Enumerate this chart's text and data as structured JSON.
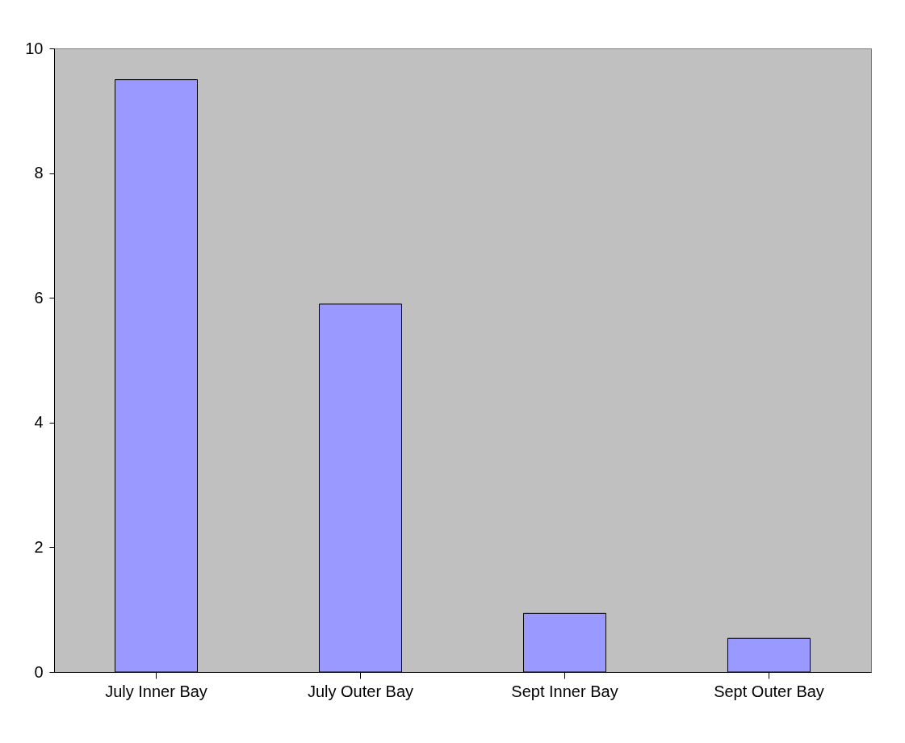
{
  "chart_data": {
    "type": "bar",
    "categories": [
      "July Inner  Bay",
      "July Outer Bay",
      "Sept Inner Bay",
      "Sept Outer Bay"
    ],
    "values": [
      9.5,
      5.9,
      0.94,
      0.54
    ],
    "color": "#9999ff",
    "ylim": [
      0,
      10
    ],
    "yticks": [
      0,
      2,
      4,
      6,
      8,
      10
    ],
    "grid": false
  }
}
